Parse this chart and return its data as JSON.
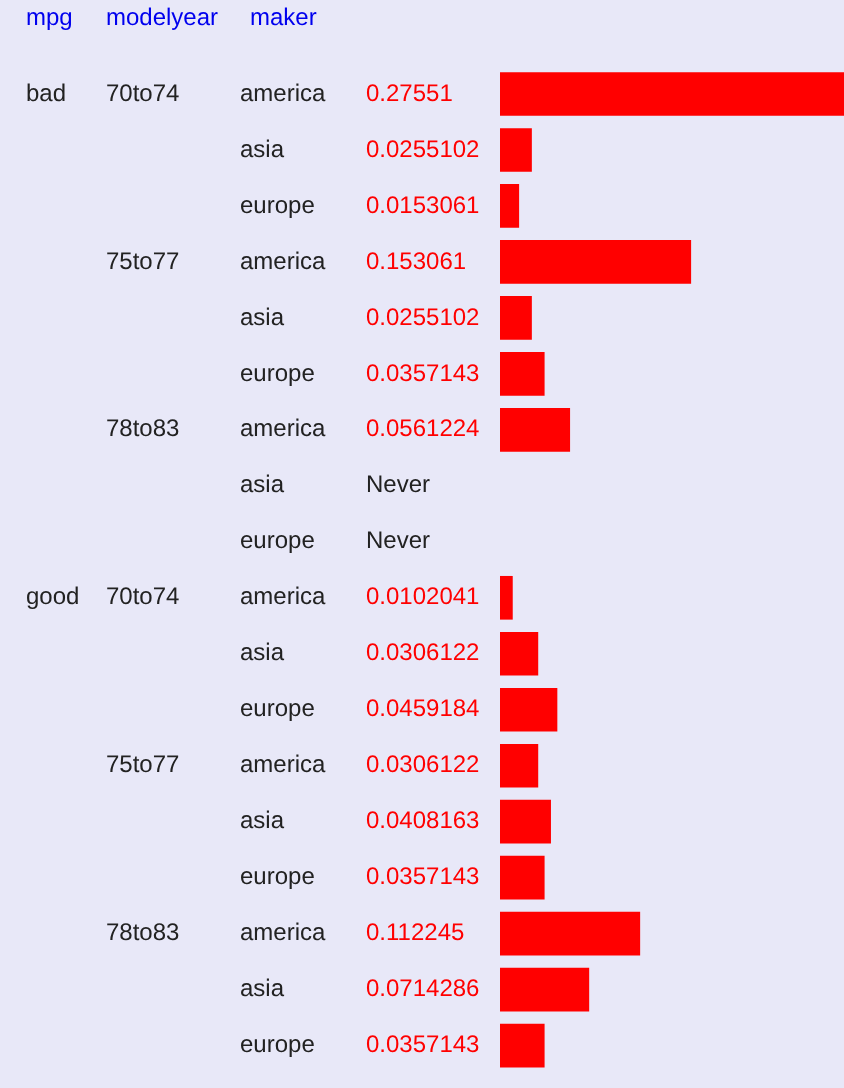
{
  "chart_data": {
    "type": "bar",
    "orientation": "horizontal",
    "color": "#ff0000",
    "tick_labels": "y",
    "grid": false,
    "legend": false,
    "categories": [
      "america",
      "asia",
      "europe",
      "america",
      "asia",
      "europe",
      "america",
      "asia",
      "europe",
      "america",
      "asia",
      "europe",
      "america",
      "asia",
      "europe",
      "america",
      "asia",
      "europe"
    ],
    "values": [
      0.27551,
      0.0255102,
      0.0153061,
      0.153061,
      0.0255102,
      0.0357143,
      0.0561224,
      null,
      null,
      0.0102041,
      0.0306122,
      0.0459184,
      0.0306122,
      0.0408163,
      0.0357143,
      0.112245,
      0.0714286,
      0.0357143
    ],
    "value_labels": [
      "0.27551",
      "0.0255102",
      "0.0153061",
      "0.153061",
      "0.0255102",
      "0.0357143",
      "0.0561224",
      "Never",
      "Never",
      "0.0102041",
      "0.0306122",
      "0.0459184",
      "0.0306122",
      "0.0408163",
      "0.0357143",
      "0.112245",
      "0.0714286",
      "0.0357143"
    ],
    "annotations": [
      "mpg",
      "modelyear",
      "maker",
      "bad",
      "good",
      "70to74",
      "75to77",
      "78to83",
      "70to74",
      "75to77",
      "78to83"
    ]
  }
}
